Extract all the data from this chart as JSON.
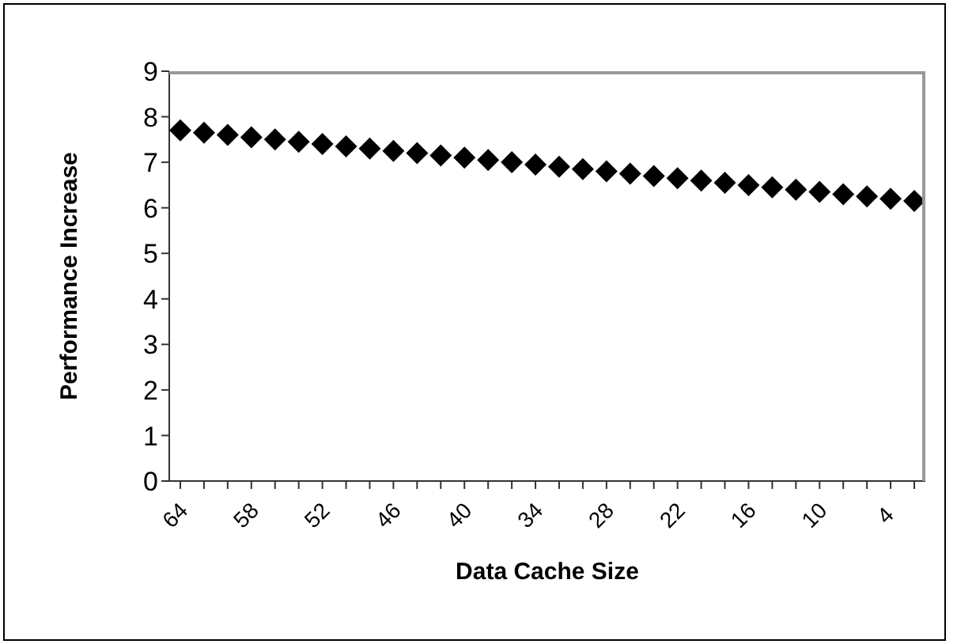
{
  "chart_data": {
    "type": "scatter",
    "xlabel": "Data Cache Size",
    "ylabel": "Performance Increase",
    "categories": [
      "64",
      null,
      null,
      "58",
      null,
      null,
      "52",
      null,
      null,
      "46",
      null,
      null,
      "40",
      null,
      null,
      "34",
      null,
      null,
      "28",
      null,
      null,
      "22",
      null,
      null,
      "16",
      null,
      null,
      "10",
      null,
      null,
      "4",
      null
    ],
    "values": [
      7.7,
      7.65,
      7.6,
      7.55,
      7.5,
      7.45,
      7.4,
      7.35,
      7.3,
      7.25,
      7.2,
      7.15,
      7.1,
      7.05,
      7.0,
      6.95,
      6.9,
      6.85,
      6.8,
      6.75,
      6.7,
      6.65,
      6.6,
      6.55,
      6.5,
      6.45,
      6.4,
      6.35,
      6.3,
      6.25,
      6.2,
      6.15
    ],
    "color": "#000000",
    "marker": "diamond",
    "ylim": [
      0,
      9
    ],
    "yticks": [
      0,
      1,
      2,
      3,
      4,
      5,
      6,
      7,
      8,
      9
    ],
    "grid": false,
    "legend": false
  }
}
